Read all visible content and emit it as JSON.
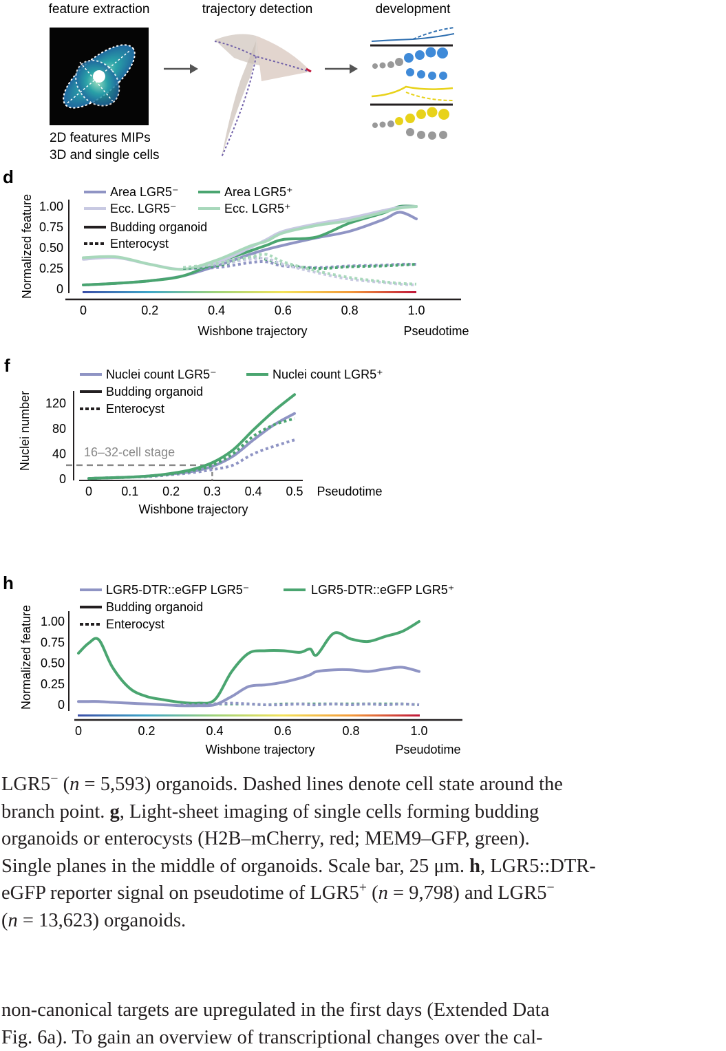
{
  "colors": {
    "lgr5_neg": "#8f94c4",
    "lgr5_pos": "#4aa570",
    "ecc_neg": "#c8c9e2",
    "ecc_pos": "#a8d8bb",
    "axis": "#231f20",
    "gray": "#888888",
    "blue_panel": "#2f6fb0",
    "yellow_panel": "#e8d21a"
  },
  "schematic": {
    "step1_label": "feature extraction",
    "step2_label": "trajectory detection",
    "step3_label": "development",
    "step1_caption_1": "2D features MIPs",
    "step1_caption_2": "3D and single cells"
  },
  "chart_data": [
    {
      "panel": "d",
      "type": "line",
      "ylabel": "Normalized feature",
      "xlabel": "Wishbone trajectory",
      "xlabel_right": "Pseudotime",
      "xlim": [
        0,
        1.0
      ],
      "ylim": [
        0,
        1.0
      ],
      "x_ticks": [
        "0",
        "0.2",
        "0.4",
        "0.6",
        "0.8",
        "1.0"
      ],
      "y_ticks": [
        "0",
        "0.25",
        "0.50",
        "0.75",
        "1.00"
      ],
      "legend": {
        "area_neg": "Area LGR5⁻",
        "area_pos": "Area LGR5⁺",
        "ecc_neg": "Ecc. LGR5⁻",
        "ecc_pos": "Ecc. LGR5⁺",
        "solid": "Budding organoid",
        "dashed": "Enterocyst"
      },
      "x": [
        0,
        0.1,
        0.2,
        0.3,
        0.4,
        0.5,
        0.55,
        0.6,
        0.7,
        0.8,
        0.9,
        0.95,
        1.0
      ],
      "series": [
        {
          "name": "Area LGR5⁻",
          "style": "solid",
          "color": "#8f94c4",
          "values": [
            0.05,
            0.07,
            0.1,
            0.16,
            0.28,
            0.42,
            0.48,
            0.53,
            0.62,
            0.7,
            0.84,
            0.93,
            0.85
          ]
        },
        {
          "name": "Area LGR5⁺",
          "style": "solid",
          "color": "#4aa570",
          "values": [
            0.05,
            0.07,
            0.1,
            0.16,
            0.32,
            0.46,
            0.53,
            0.6,
            0.63,
            0.8,
            0.92,
            1.0,
            1.0
          ]
        },
        {
          "name": "Ecc. LGR5⁻",
          "style": "solid",
          "color": "#c8c9e2",
          "values": [
            0.36,
            0.38,
            0.3,
            0.24,
            0.32,
            0.5,
            0.6,
            0.7,
            0.79,
            0.86,
            0.95,
            0.99,
            1.0
          ]
        },
        {
          "name": "Ecc. LGR5⁺",
          "style": "solid",
          "color": "#a8d8bb",
          "values": [
            0.38,
            0.39,
            0.3,
            0.24,
            0.35,
            0.52,
            0.58,
            0.68,
            0.77,
            0.83,
            0.93,
            0.98,
            1.0
          ]
        },
        {
          "name": "Area LGR5⁻",
          "style": "dashed",
          "color": "#8f94c4",
          "values": [
            null,
            null,
            null,
            0.25,
            0.26,
            0.32,
            0.33,
            0.28,
            0.26,
            0.28,
            0.29,
            0.3,
            0.3
          ]
        },
        {
          "name": "Area LGR5⁺",
          "style": "dashed",
          "color": "#4aa570",
          "values": [
            null,
            null,
            null,
            0.25,
            0.28,
            0.38,
            0.36,
            0.3,
            0.25,
            0.27,
            0.28,
            0.29,
            0.3
          ]
        },
        {
          "name": "Ecc. LGR5⁻",
          "style": "dashed",
          "color": "#c8c9e2",
          "values": [
            null,
            null,
            null,
            0.26,
            0.3,
            0.36,
            0.37,
            0.3,
            0.2,
            0.12,
            0.08,
            0.06,
            0.05
          ]
        },
        {
          "name": "Ecc. LGR5⁺",
          "style": "dashed",
          "color": "#a8d8bb",
          "values": [
            null,
            null,
            null,
            0.26,
            0.31,
            0.39,
            0.42,
            0.33,
            0.22,
            0.14,
            0.09,
            0.07,
            0.06
          ]
        }
      ]
    },
    {
      "panel": "f",
      "type": "line",
      "ylabel": "Nuclei number",
      "xlabel": "Wishbone trajectory",
      "xlabel_right": "Pseudotime",
      "xlim": [
        0,
        0.5
      ],
      "ylim": [
        0,
        130
      ],
      "x_ticks": [
        "0",
        "0.1",
        "0.2",
        "0.3",
        "0.4",
        "0.5"
      ],
      "y_ticks": [
        "0",
        "40",
        "80",
        "120"
      ],
      "annotation": "16–32-cell stage",
      "annotation_y": 22,
      "annotation_x": 0.3,
      "legend": {
        "neg": "Nuclei count LGR5⁻",
        "pos": "Nuclei count LGR5⁺",
        "solid": "Budding organoid",
        "dashed": "Enterocyst"
      },
      "x": [
        0,
        0.05,
        0.1,
        0.15,
        0.2,
        0.25,
        0.3,
        0.35,
        0.4,
        0.45,
        0.5
      ],
      "series": [
        {
          "name": "Nuclei count LGR5⁻",
          "style": "solid",
          "color": "#8f94c4",
          "values": [
            1,
            2,
            3,
            5,
            8,
            12,
            20,
            36,
            62,
            86,
            104
          ]
        },
        {
          "name": "Nuclei count LGR5⁺",
          "style": "solid",
          "color": "#4aa570",
          "values": [
            1,
            2,
            3,
            5,
            9,
            15,
            26,
            46,
            78,
            108,
            134
          ]
        },
        {
          "name": "Nuclei count LGR5⁻",
          "style": "dashed",
          "color": "#8f94c4",
          "values": [
            1,
            2,
            3,
            4,
            7,
            10,
            15,
            22,
            40,
            52,
            62
          ]
        },
        {
          "name": "Nuclei count LGR5⁺",
          "style": "dashed",
          "color": "#4aa570",
          "values": [
            1,
            2,
            3,
            5,
            8,
            13,
            22,
            40,
            68,
            86,
            96
          ]
        }
      ]
    },
    {
      "panel": "h",
      "type": "line",
      "ylabel": "Normalized feature",
      "xlabel": "Wishbone trajectory",
      "xlabel_right": "Pseudotime",
      "xlim": [
        0,
        1.0
      ],
      "ylim": [
        0,
        1.0
      ],
      "x_ticks": [
        "0",
        "0.2",
        "0.4",
        "0.6",
        "0.8",
        "1.0"
      ],
      "y_ticks": [
        "0",
        "0.25",
        "0.50",
        "0.75",
        "1.00"
      ],
      "legend": {
        "neg": "LGR5-DTR::eGFP LGR5⁻",
        "pos": "LGR5-DTR::eGFP LGR5⁺",
        "solid": "Budding organoid",
        "dashed": "Enterocyst"
      },
      "x": [
        0,
        0.03,
        0.06,
        0.1,
        0.15,
        0.2,
        0.25,
        0.3,
        0.35,
        0.4,
        0.45,
        0.5,
        0.55,
        0.6,
        0.65,
        0.68,
        0.7,
        0.75,
        0.8,
        0.85,
        0.9,
        0.95,
        1.0
      ],
      "series": [
        {
          "name": "LGR5-DTR::eGFP LGR5⁺",
          "style": "solid",
          "color": "#4aa570",
          "values": [
            0.62,
            0.74,
            0.78,
            0.45,
            0.2,
            0.1,
            0.06,
            0.03,
            0.02,
            0.06,
            0.4,
            0.62,
            0.65,
            0.65,
            0.63,
            0.67,
            0.6,
            0.86,
            0.79,
            0.76,
            0.82,
            0.88,
            1.0
          ]
        },
        {
          "name": "LGR5-DTR::eGFP LGR5⁻",
          "style": "solid",
          "color": "#8f94c4",
          "values": [
            0.04,
            0.04,
            0.04,
            0.03,
            0.02,
            0.01,
            0.0,
            -0.01,
            -0.01,
            0.0,
            0.1,
            0.22,
            0.24,
            0.27,
            0.32,
            0.36,
            0.4,
            0.42,
            0.42,
            0.4,
            0.43,
            0.45,
            0.4
          ]
        },
        {
          "name": "LGR5-DTR::eGFP LGR5⁺",
          "style": "dashed",
          "color": "#4aa570",
          "values": [
            null,
            null,
            null,
            null,
            null,
            null,
            null,
            0.0,
            0.0,
            0.01,
            0.01,
            0.01,
            0.0,
            0.01,
            0.01,
            0.01,
            0.01,
            0.01,
            0.01,
            0.01,
            0.01,
            0.01,
            0.0
          ]
        },
        {
          "name": "LGR5-DTR::eGFP LGR5⁻",
          "style": "dashed",
          "color": "#8f94c4",
          "values": [
            null,
            null,
            null,
            null,
            null,
            null,
            null,
            0.0,
            0.0,
            0.01,
            0.02,
            0.01,
            0.0,
            0.0,
            0.01,
            0.0,
            0.0,
            0.01,
            0.0,
            0.01,
            0.0,
            0.01,
            0.0
          ]
        }
      ]
    }
  ],
  "caption": {
    "line1_a": "LGR5",
    "line1_sup": "−",
    "line1_b": " (",
    "line1_n": "n",
    "line1_c": " = 5,593) organoids. Dashed lines denote cell state around the",
    "line2_a": "branch point. ",
    "line2_g": "g",
    "line2_b": ", Light-sheet imaging of single cells forming budding",
    "line3": "organoids or enterocysts (H2B–mCherry, red; MEM9–GFP, green).",
    "line4_a": "Single planes in the middle of organoids. Scale bar, 25 μm. ",
    "line4_h": "h",
    "line4_b": ", LGR5::DTR-",
    "line5_a": "eGFP reporter signal on pseudotime of LGR5",
    "line5_sup1": "+",
    "line5_b": " (",
    "line5_n": "n",
    "line5_c": " = 9,798) and LGR5",
    "line5_sup2": "−",
    "line6_a": "(",
    "line6_n": "n",
    "line6_b": " = 13,623) organoids.",
    "body_line1": "non-canonical targets are upregulated in the first days (Extended Data",
    "body_line2": "Fig. 6a). To gain an overview of transcriptional changes over the cal-"
  }
}
